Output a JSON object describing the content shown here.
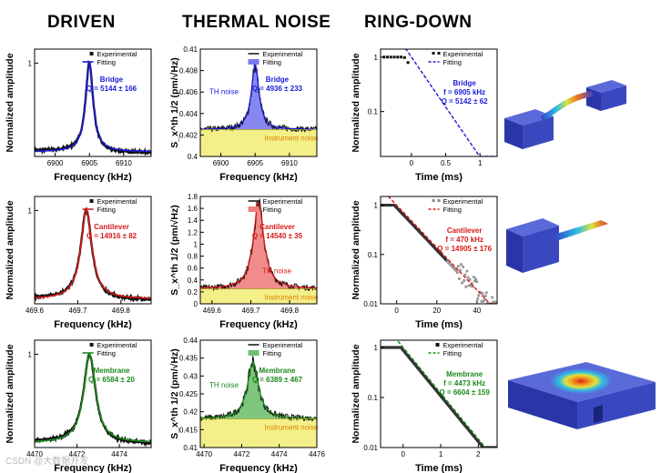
{
  "column_titles": [
    "DRIVEN",
    "THERMAL NOISE",
    "RING-DOWN"
  ],
  "colors": {
    "blue": "#1a1ad8",
    "red": "#d81818",
    "green": "#1a8a1a",
    "yellow": "#f3f08a",
    "blue_fill": "#7a7af0",
    "red_fill": "#f08080",
    "green_fill": "#70c070"
  },
  "chart_data": [
    {
      "type": "line",
      "id": "driven-bridge",
      "color_key": "blue",
      "xlabel": "Frequency (kHz)",
      "ylabel": "Normalized amplitude",
      "xlim": [
        6897,
        6914
      ],
      "ylim": [
        0,
        1.15
      ],
      "xticks": [
        6900,
        6905,
        6910
      ],
      "yticks": [
        1
      ],
      "legend": [
        "Experimental",
        "Fitting"
      ],
      "annotation": [
        "Bridge",
        "Q = 5144 ± 166"
      ],
      "lorentzian": {
        "f0": 6905,
        "hwhm": 0.67,
        "baseline": 0.05
      }
    },
    {
      "type": "line",
      "id": "noise-bridge",
      "color_key": "blue",
      "xlabel": "Frequency (kHz)",
      "ylabel": "S_x^th 1/2 (pm/√Hz)",
      "xlim": [
        6897,
        6914
      ],
      "ylim": [
        0.4,
        0.41
      ],
      "xticks": [
        6900,
        6905,
        6910
      ],
      "yticks": [
        0.4,
        0.402,
        0.404,
        0.406,
        0.408,
        0.41
      ],
      "legend": [
        "Experimental",
        "Fitting"
      ],
      "annotation": [
        "Bridge",
        "Q = 4936 ± 233"
      ],
      "labels": {
        "peak": "TH noise",
        "floor": "Instrument noise"
      },
      "peak": {
        "f0": 6905,
        "hwhm": 0.67,
        "floor": 0.4025,
        "height": 0.006
      }
    },
    {
      "type": "line",
      "id": "ring-bridge",
      "color_key": "blue",
      "xlabel": "Time (ms)",
      "ylabel": "Normalized amplitude",
      "xlim": [
        -0.45,
        1.25
      ],
      "ylog": true,
      "ylim": [
        0.015,
        1.4
      ],
      "xticks": [
        0.0,
        0.5,
        1.0
      ],
      "yticks": [
        1,
        0.1
      ],
      "legend": [
        "Experimental",
        "Fitting"
      ],
      "annotation": [
        "Bridge",
        "f = 6905 kHz",
        "Q = 5142 ± 62"
      ],
      "decay": {
        "tau_ms": 0.237,
        "t_start": -0.4,
        "plateau_end": -0.1
      }
    },
    {
      "type": "line",
      "id": "driven-cantilever",
      "color_key": "red",
      "xlabel": "Frequency (kHz)",
      "ylabel": "Normalized amplitude",
      "xlim": [
        469.6,
        469.87
      ],
      "ylim": [
        0,
        1.15
      ],
      "xticks": [
        469.6,
        469.7,
        469.8
      ],
      "yticks": [
        1
      ],
      "legend": [
        "Experimental",
        "Fitting"
      ],
      "annotation": [
        "Cantilever",
        "Q = 14916 ± 82"
      ],
      "lorentzian": {
        "f0": 469.72,
        "hwhm": 0.0157,
        "baseline": 0.05
      }
    },
    {
      "type": "line",
      "id": "noise-cantilever",
      "color_key": "red",
      "xlabel": "Frequency (kHz)",
      "ylabel": "S_x^th 1/2 (pm/√Hz)",
      "xlim": [
        469.57,
        469.87
      ],
      "ylim": [
        0,
        1.8
      ],
      "xticks": [
        469.6,
        469.7,
        469.8
      ],
      "yticks": [
        0.0,
        0.2,
        0.4,
        0.6,
        0.8,
        1.0,
        1.2,
        1.4,
        1.6,
        1.8
      ],
      "legend": [
        "Experimental",
        "Fitting"
      ],
      "annotation": [
        "Cantilever",
        "Q = 14540 ± 35"
      ],
      "labels": {
        "peak": "TH noise",
        "floor": "Instrument noise"
      },
      "peak": {
        "f0": 469.72,
        "hwhm": 0.0162,
        "floor": 0.25,
        "height": 1.45
      }
    },
    {
      "type": "line",
      "id": "ring-cantilever",
      "color_key": "red",
      "xlabel": "Time (ms)",
      "ylabel": "Normalized amplitude",
      "xlim": [
        -8,
        50
      ],
      "ylog": true,
      "ylim": [
        0.01,
        1.5
      ],
      "xticks": [
        0,
        20,
        40
      ],
      "yticks": [
        1,
        0.1,
        0.01
      ],
      "legend": [
        "Experimental",
        "Fitting"
      ],
      "annotation": [
        "Cantilever",
        "f = 470 kHz",
        "Q = 14905 ± 176"
      ],
      "decay": {
        "tau_ms": 10.1,
        "t_start": -8,
        "plateau_end": -1
      }
    },
    {
      "type": "line",
      "id": "driven-membrane",
      "color_key": "green",
      "xlabel": "Frequency (kHz)",
      "ylabel": "Normalized amplitude",
      "xlim": [
        4470,
        4475.5
      ],
      "ylim": [
        0,
        1.15
      ],
      "xticks": [
        4470,
        4472,
        4474
      ],
      "yticks": [
        1
      ],
      "legend": [
        "Experimental",
        "Fitting"
      ],
      "annotation": [
        "Membrane",
        "Q = 6584 ± 20"
      ],
      "lorentzian": {
        "f0": 4472.6,
        "hwhm": 0.34,
        "baseline": 0.05
      }
    },
    {
      "type": "line",
      "id": "noise-membrane",
      "color_key": "green",
      "xlabel": "Frequency (kHz)",
      "ylabel": "S_x^th 1/2 (pm/√Hz)",
      "xlim": [
        4469.8,
        4476
      ],
      "ylim": [
        0.41,
        0.44
      ],
      "xticks": [
        4470,
        4472,
        4474,
        4476
      ],
      "yticks": [
        0.41,
        0.415,
        0.42,
        0.425,
        0.43,
        0.435,
        0.44
      ],
      "legend": [
        "Experimental",
        "Fitting"
      ],
      "annotation": [
        "Membrane",
        "Q = 6389 ± 467"
      ],
      "labels": {
        "peak": "TH noise",
        "floor": "Instrument noise"
      },
      "peak": {
        "f0": 4472.6,
        "hwhm": 0.35,
        "floor": 0.418,
        "height": 0.016
      }
    },
    {
      "type": "line",
      "id": "ring-membrane",
      "color_key": "green",
      "xlabel": "Time (ms)",
      "ylabel": "Normalized amplitude",
      "xlim": [
        -0.6,
        2.5
      ],
      "ylog": true,
      "ylim": [
        0.01,
        1.4
      ],
      "xticks": [
        0,
        1,
        2
      ],
      "yticks": [
        1,
        0.1,
        0.01
      ],
      "legend": [
        "Experimental",
        "Fitting"
      ],
      "annotation": [
        "Membrane",
        "f = 4473 kHz",
        "Q = 6604 ± 159"
      ],
      "decay": {
        "tau_ms": 0.475,
        "t_start": -0.6,
        "plateau_end": -0.05
      }
    }
  ],
  "watermark": "CSDN @大数据开发"
}
